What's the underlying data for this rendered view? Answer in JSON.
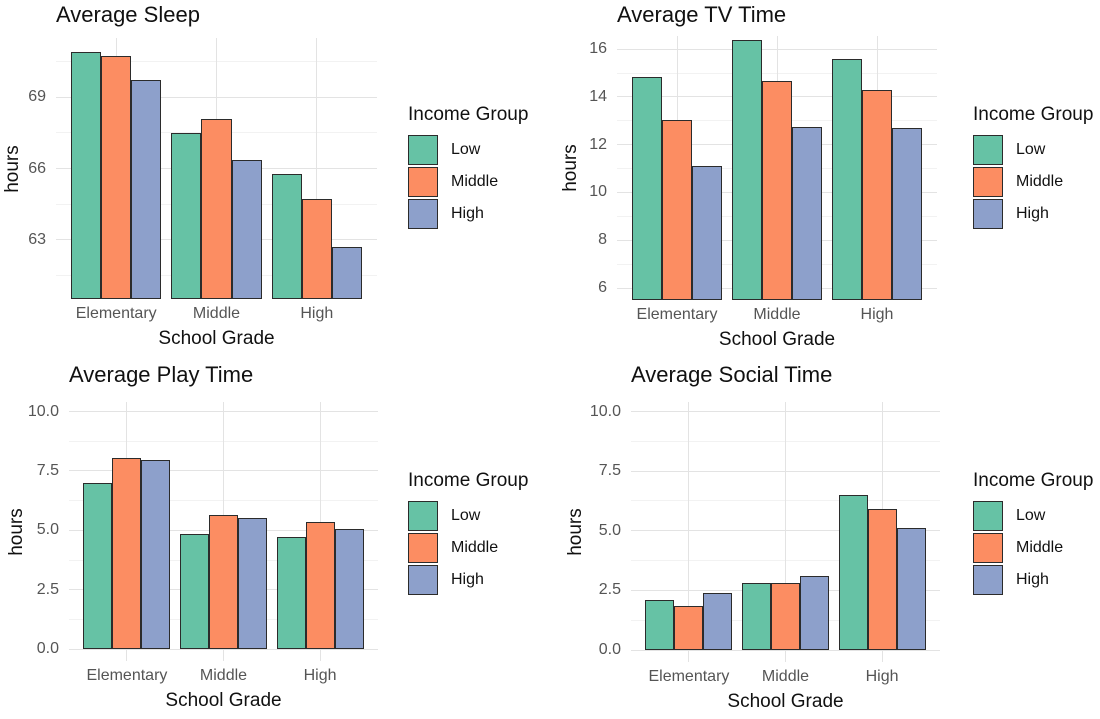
{
  "figure": {
    "background": "#ffffff",
    "palette": {
      "low": "#66C2A5",
      "middle": "#FC8D62",
      "high": "#8DA0CB"
    },
    "bar_border_color": "#2b2b2b",
    "grid_major_color": "#e3e3e3",
    "grid_minor_color": "#f2f2f2",
    "tick_text_color": "#555555",
    "title_text_color": "#111111"
  },
  "chart_data": [
    {
      "type": "bar",
      "title": "Average Sleep",
      "xlabel": "School Grade",
      "ylabel": "hours",
      "categories": [
        "Elementary",
        "Middle",
        "High"
      ],
      "series": [
        {
          "name": "Low",
          "color": "#66C2A5",
          "values": [
            70.9,
            67.5,
            65.75
          ]
        },
        {
          "name": "Middle",
          "color": "#FC8D62",
          "values": [
            70.75,
            68.1,
            64.7
          ]
        },
        {
          "name": "High",
          "color": "#8DA0CB",
          "values": [
            69.75,
            66.35,
            62.7
          ]
        }
      ],
      "ylim": [
        60.5,
        71.5
      ],
      "bar_base": 60.5,
      "yticks": [
        {
          "value": 63,
          "label": "63"
        },
        {
          "value": 66,
          "label": "66"
        },
        {
          "value": 69,
          "label": "69"
        }
      ],
      "y_minor": [
        61.5,
        64.5,
        67.5,
        70.5
      ],
      "grid": true,
      "legend": {
        "title": "Income Group",
        "position": "right",
        "items": [
          {
            "label": "Low",
            "color": "#66C2A5"
          },
          {
            "label": "Middle",
            "color": "#FC8D62"
          },
          {
            "label": "High",
            "color": "#8DA0CB"
          }
        ]
      }
    },
    {
      "type": "bar",
      "title": "Average TV Time",
      "xlabel": "School Grade",
      "ylabel": "hours",
      "categories": [
        "Elementary",
        "Middle",
        "High"
      ],
      "series": [
        {
          "name": "Low",
          "color": "#66C2A5",
          "values": [
            14.85,
            16.4,
            15.6
          ]
        },
        {
          "name": "Middle",
          "color": "#FC8D62",
          "values": [
            13.05,
            14.65,
            14.3
          ]
        },
        {
          "name": "High",
          "color": "#8DA0CB",
          "values": [
            11.1,
            12.75,
            12.7
          ]
        }
      ],
      "ylim": [
        5.5,
        16.55
      ],
      "bar_base": 5.5,
      "yticks": [
        {
          "value": 6,
          "label": "6"
        },
        {
          "value": 8,
          "label": "8"
        },
        {
          "value": 10,
          "label": "10"
        },
        {
          "value": 12,
          "label": "12"
        },
        {
          "value": 14,
          "label": "14"
        },
        {
          "value": 16,
          "label": "16"
        }
      ],
      "y_minor": [
        7,
        9,
        11,
        13,
        15
      ],
      "grid": true,
      "legend": {
        "title": "Income Group",
        "position": "right",
        "items": [
          {
            "label": "Low",
            "color": "#66C2A5"
          },
          {
            "label": "Middle",
            "color": "#FC8D62"
          },
          {
            "label": "High",
            "color": "#8DA0CB"
          }
        ]
      }
    },
    {
      "type": "bar",
      "title": "Average Play Time",
      "xlabel": "School Grade",
      "ylabel": "hours",
      "categories": [
        "Elementary",
        "Middle",
        "High"
      ],
      "series": [
        {
          "name": "Low",
          "color": "#66C2A5",
          "values": [
            7.0,
            4.85,
            4.7
          ]
        },
        {
          "name": "Middle",
          "color": "#FC8D62",
          "values": [
            8.05,
            5.65,
            5.35
          ]
        },
        {
          "name": "High",
          "color": "#8DA0CB",
          "values": [
            7.95,
            5.5,
            5.05
          ]
        }
      ],
      "ylim": [
        -0.5,
        10.4
      ],
      "bar_base": 0,
      "yticks": [
        {
          "value": 0,
          "label": "0.0"
        },
        {
          "value": 2.5,
          "label": "2.5"
        },
        {
          "value": 5,
          "label": "5.0"
        },
        {
          "value": 7.5,
          "label": "7.5"
        },
        {
          "value": 10,
          "label": "10.0"
        }
      ],
      "y_minor": [
        1.25,
        3.75,
        6.25,
        8.75
      ],
      "grid": true,
      "legend": {
        "title": "Income Group",
        "position": "right",
        "items": [
          {
            "label": "Low",
            "color": "#66C2A5"
          },
          {
            "label": "Middle",
            "color": "#FC8D62"
          },
          {
            "label": "High",
            "color": "#8DA0CB"
          }
        ]
      }
    },
    {
      "type": "bar",
      "title": "Average Social Time",
      "xlabel": "School Grade",
      "ylabel": "hours",
      "categories": [
        "Elementary",
        "Middle",
        "High"
      ],
      "series": [
        {
          "name": "Low",
          "color": "#66C2A5",
          "values": [
            2.1,
            2.8,
            6.5
          ]
        },
        {
          "name": "Middle",
          "color": "#FC8D62",
          "values": [
            1.85,
            2.8,
            5.9
          ]
        },
        {
          "name": "High",
          "color": "#8DA0CB",
          "values": [
            2.4,
            3.1,
            5.1
          ]
        }
      ],
      "ylim": [
        -0.5,
        10.4
      ],
      "bar_base": 0,
      "yticks": [
        {
          "value": 0,
          "label": "0.0"
        },
        {
          "value": 2.5,
          "label": "2.5"
        },
        {
          "value": 5,
          "label": "5.0"
        },
        {
          "value": 7.5,
          "label": "7.5"
        },
        {
          "value": 10,
          "label": "10.0"
        }
      ],
      "y_minor": [
        1.25,
        3.75,
        6.25,
        8.75
      ],
      "grid": true,
      "legend": {
        "title": "Income Group",
        "position": "right",
        "items": [
          {
            "label": "Low",
            "color": "#66C2A5"
          },
          {
            "label": "Middle",
            "color": "#FC8D62"
          },
          {
            "label": "High",
            "color": "#8DA0CB"
          }
        ]
      }
    }
  ]
}
